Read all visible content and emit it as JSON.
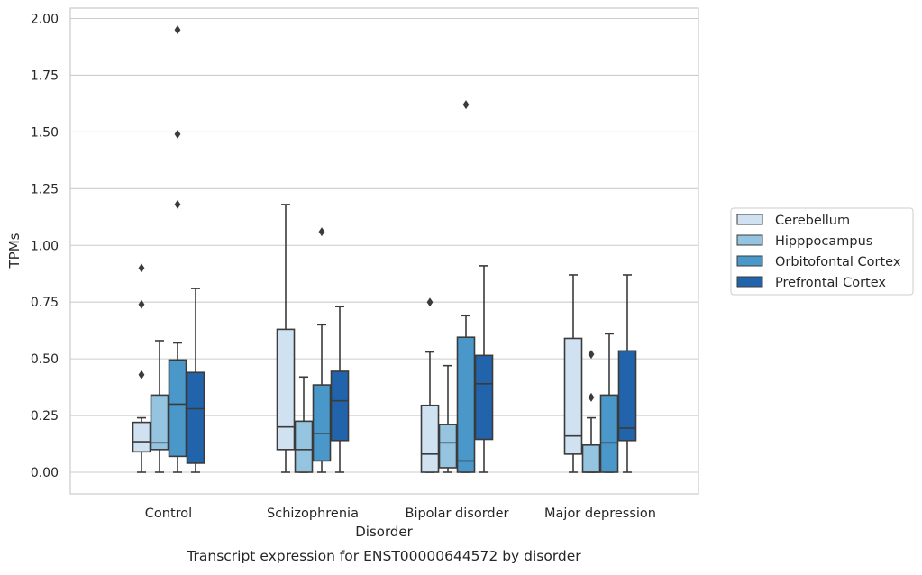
{
  "chart_data": {
    "type": "boxplot",
    "caption": "Transcript expression for ENST00000644572 by disorder",
    "xlabel": "Disorder",
    "ylabel": "TPMs",
    "ylim": [
      -0.1,
      2.03
    ],
    "yticks": [
      0.0,
      0.25,
      0.5,
      0.75,
      1.0,
      1.25,
      1.5,
      1.75,
      2.0
    ],
    "ytick_labels": [
      "0.00",
      "0.25",
      "0.50",
      "0.75",
      "1.00",
      "1.25",
      "1.50",
      "1.75",
      "2.00"
    ],
    "grid": "horizontal",
    "legend_position": "right",
    "categories": [
      "Control",
      "Schizophrenia",
      "Bipolar disorder",
      "Major depression"
    ],
    "series": [
      {
        "name": "Cerebellum",
        "color": "#d0e1f2",
        "boxes": [
          {
            "whislo": 0.0,
            "q1": 0.09,
            "med": 0.135,
            "q3": 0.22,
            "whishi": 0.24,
            "fliers": [
              0.43,
              0.74,
              0.9
            ]
          },
          {
            "whislo": 0.0,
            "q1": 0.1,
            "med": 0.2,
            "q3": 0.63,
            "whishi": 1.18,
            "fliers": []
          },
          {
            "whislo": 0.0,
            "q1": 0.0,
            "med": 0.08,
            "q3": 0.295,
            "whishi": 0.53,
            "fliers": [
              0.75
            ]
          },
          {
            "whislo": 0.0,
            "q1": 0.08,
            "med": 0.16,
            "q3": 0.59,
            "whishi": 0.87,
            "fliers": []
          }
        ]
      },
      {
        "name": "Hipppocampus",
        "color": "#94c4df",
        "boxes": [
          {
            "whislo": 0.0,
            "q1": 0.1,
            "med": 0.13,
            "q3": 0.34,
            "whishi": 0.58,
            "fliers": []
          },
          {
            "whislo": 0.0,
            "q1": 0.0,
            "med": 0.1,
            "q3": 0.225,
            "whishi": 0.42,
            "fliers": []
          },
          {
            "whislo": 0.0,
            "q1": 0.02,
            "med": 0.13,
            "q3": 0.21,
            "whishi": 0.47,
            "fliers": []
          },
          {
            "whislo": 0.0,
            "q1": 0.0,
            "med": 0.0,
            "q3": 0.12,
            "whishi": 0.24,
            "fliers": [
              0.33,
              0.52
            ]
          }
        ]
      },
      {
        "name": "Orbitofontal Cortex",
        "color": "#4a98c9",
        "boxes": [
          {
            "whislo": 0.0,
            "q1": 0.07,
            "med": 0.3,
            "q3": 0.495,
            "whishi": 0.57,
            "fliers": [
              1.18,
              1.49,
              1.95
            ]
          },
          {
            "whislo": 0.0,
            "q1": 0.05,
            "med": 0.17,
            "q3": 0.385,
            "whishi": 0.65,
            "fliers": [
              1.06
            ]
          },
          {
            "whislo": 0.0,
            "q1": 0.0,
            "med": 0.05,
            "q3": 0.595,
            "whishi": 0.69,
            "fliers": [
              1.62
            ]
          },
          {
            "whislo": 0.0,
            "q1": 0.0,
            "med": 0.13,
            "q3": 0.34,
            "whishi": 0.61,
            "fliers": []
          }
        ]
      },
      {
        "name": "Prefrontal Cortex",
        "color": "#2164ab",
        "boxes": [
          {
            "whislo": 0.0,
            "q1": 0.04,
            "med": 0.28,
            "q3": 0.44,
            "whishi": 0.81,
            "fliers": []
          },
          {
            "whislo": 0.0,
            "q1": 0.14,
            "med": 0.315,
            "q3": 0.445,
            "whishi": 0.73,
            "fliers": []
          },
          {
            "whislo": 0.0,
            "q1": 0.145,
            "med": 0.39,
            "q3": 0.515,
            "whishi": 0.91,
            "fliers": []
          },
          {
            "whislo": 0.0,
            "q1": 0.14,
            "med": 0.195,
            "q3": 0.535,
            "whishi": 0.87,
            "fliers": []
          }
        ]
      }
    ]
  }
}
